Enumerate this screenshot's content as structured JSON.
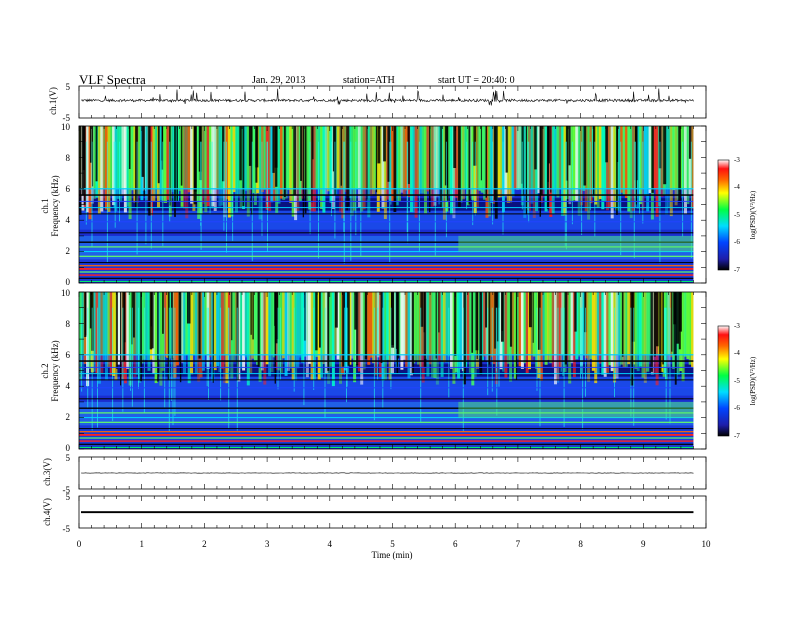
{
  "header": {
    "title": "VLF  Spectra",
    "date": "Jan. 29, 2013",
    "station": "station=ATH",
    "start": "start  UT  =   20:40: 0"
  },
  "chart_data": [
    {
      "type": "line",
      "id": "ch1_waveform",
      "ylabel": "ch.1(V)",
      "ylim": [
        -5,
        5
      ],
      "y_ticks": [
        "5",
        "-5"
      ],
      "baseline_level": 0.5
    },
    {
      "type": "heatmap",
      "id": "ch1_spectrogram",
      "ylabel_channel": "ch.1",
      "ylabel": "Frequency  (kHz)",
      "ylim": [
        0,
        10
      ],
      "y_ticks": [
        "10",
        "8",
        "6",
        "4",
        "2",
        "0"
      ],
      "colorbar": {
        "label": "log(PSD)(V²/Hz)",
        "range": [
          -7,
          -3
        ],
        "ticks": [
          "-3",
          "-4",
          "-5",
          "-6",
          "-7"
        ]
      }
    },
    {
      "type": "heatmap",
      "id": "ch2_spectrogram",
      "ylabel_channel": "ch.2",
      "ylabel": "Frequency  (kHz)",
      "ylim": [
        0,
        10
      ],
      "y_ticks": [
        "10",
        "8",
        "6",
        "4",
        "2",
        "0"
      ],
      "colorbar": {
        "label": "log(PSD)(V²/Hz)",
        "range": [
          -7,
          -3
        ],
        "ticks": [
          "-3",
          "-4",
          "-5",
          "-6",
          "-7"
        ]
      }
    },
    {
      "type": "line",
      "id": "ch3_waveform",
      "ylabel": "ch.3(V)",
      "ylim": [
        -5,
        5
      ],
      "y_ticks": [
        "5",
        "-5"
      ]
    },
    {
      "type": "line",
      "id": "ch4_waveform",
      "ylabel": "ch.4(V)",
      "ylim": [
        -5,
        5
      ],
      "y_ticks": [
        "5",
        "-5"
      ]
    }
  ],
  "x_axis": {
    "label": "Time  (min)",
    "range": [
      0,
      10
    ],
    "data_end": 9.8,
    "ticks": [
      "0",
      "1",
      "2",
      "3",
      "4",
      "5",
      "6",
      "7",
      "8",
      "9",
      "10"
    ]
  }
}
